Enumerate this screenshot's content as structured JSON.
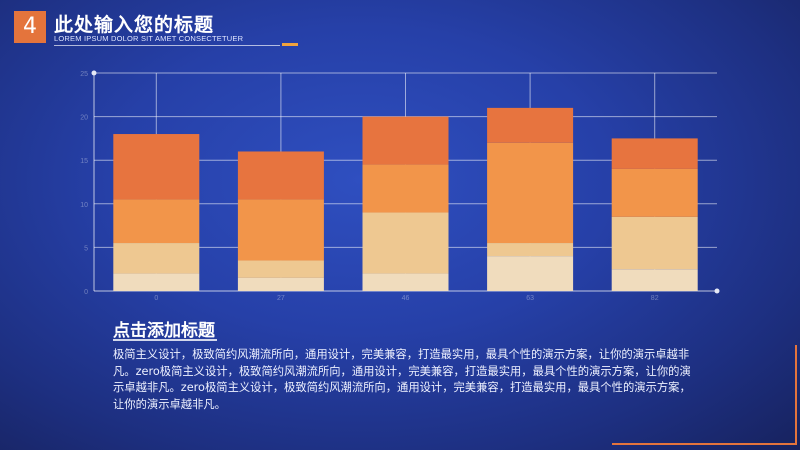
{
  "header": {
    "number": "4",
    "title": "此处输入您的标题",
    "subtitle": "LOREM IPSUM DOLOR SIT AMET CONSECTETUER"
  },
  "colors": {
    "accent": "#e4743c",
    "gold": "#f1a33c",
    "segments": [
      "#f0dcbd",
      "#eec891",
      "#f2954a",
      "#e7743f"
    ]
  },
  "chart_data": {
    "type": "bar",
    "stacked": true,
    "categories": [
      "0",
      "27",
      "46",
      "63",
      "82"
    ],
    "series": [
      {
        "values": [
          2,
          1.5,
          2,
          4,
          2.5
        ]
      },
      {
        "values": [
          3.5,
          2,
          7,
          1.5,
          6
        ]
      },
      {
        "values": [
          5,
          7,
          5.5,
          11.5,
          5.5
        ]
      },
      {
        "values": [
          7.5,
          5.5,
          5.5,
          4,
          3.5
        ]
      }
    ],
    "yticks": [
      "0",
      "5",
      "10",
      "15",
      "20",
      "25"
    ],
    "ylim": [
      0,
      25
    ],
    "grid": true
  },
  "content": {
    "heading": "点击添加标题",
    "body": "极简主义设计，极致简约风潮流所向，通用设计，完美兼容，打造最实用，最具个性的演示方案，让你的演示卓越非凡。zero极简主义设计，极致简约风潮流所向，通用设计，完美兼容，打造最实用，最具个性的演示方案，让你的演示卓越非凡。zero极简主义设计，极致简约风潮流所向，通用设计，完美兼容，打造最实用，最具个性的演示方案，让你的演示卓越非凡。"
  }
}
